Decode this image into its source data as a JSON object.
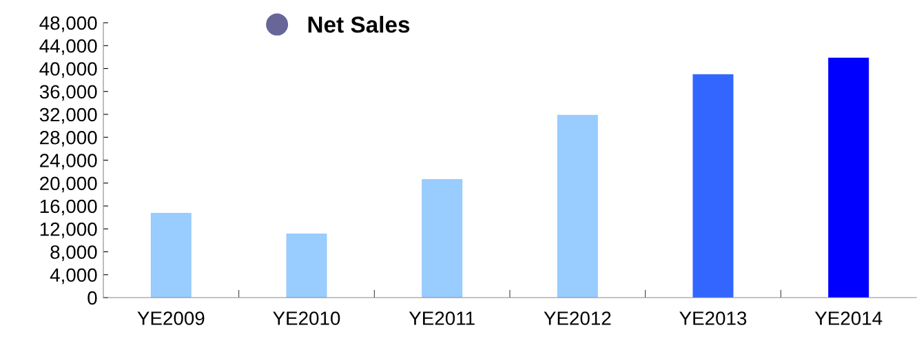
{
  "chart_data": {
    "type": "bar",
    "categories": [
      "YE2009",
      "YE2010",
      "YE2011",
      "YE2012",
      "YE2013",
      "YE2014"
    ],
    "series": [
      {
        "name": "Net Sales",
        "color": "#666699",
        "colors": [
          "#99ccff",
          "#99ccff",
          "#99ccff",
          "#99ccff",
          "#3366ff",
          "#0000ff"
        ],
        "values": [
          14800,
          11200,
          20700,
          31900,
          39000,
          41900
        ]
      }
    ],
    "ylim": [
      0,
      48000
    ],
    "yticks": [
      {
        "value": 0,
        "label": "0"
      },
      {
        "value": 4000,
        "label": "4,000"
      },
      {
        "value": 8000,
        "label": "8,000"
      },
      {
        "value": 12000,
        "label": "12,000"
      },
      {
        "value": 16000,
        "label": "16,000"
      },
      {
        "value": 20000,
        "label": "20,000"
      },
      {
        "value": 24000,
        "label": "24,000"
      },
      {
        "value": 28000,
        "label": "28,000"
      },
      {
        "value": 32000,
        "label": "32,000"
      },
      {
        "value": 36000,
        "label": "36,000"
      },
      {
        "value": 40000,
        "label": "40,000"
      },
      {
        "value": 44000,
        "label": "44,000"
      },
      {
        "value": 48000,
        "label": "48,000"
      }
    ],
    "grid": false,
    "legend": "top left"
  }
}
